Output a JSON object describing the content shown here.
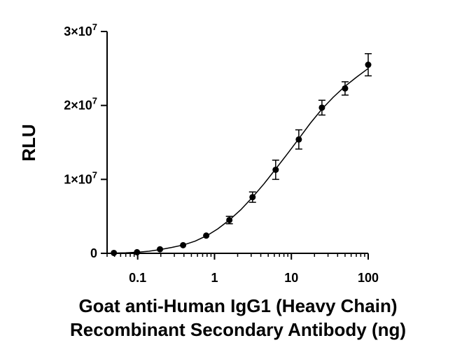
{
  "chart_data": {
    "type": "scatter",
    "title": "",
    "xlabel_lines": [
      "Goat anti-Human IgG1 (Heavy Chain)",
      "Recombinant Secondary Antibody (ng)"
    ],
    "ylabel": "RLU",
    "x_scale": "log",
    "xlim": [
      0.04,
      100
    ],
    "ylim": [
      0,
      30000000
    ],
    "x_ticks": [
      {
        "value": 0.1,
        "label": "0.1"
      },
      {
        "value": 1,
        "label": "1"
      },
      {
        "value": 10,
        "label": "10"
      },
      {
        "value": 100,
        "label": "100"
      }
    ],
    "y_ticks": [
      {
        "value": 0,
        "base": "0",
        "exp": ""
      },
      {
        "value": 10000000,
        "base": "1×10",
        "exp": "7"
      },
      {
        "value": 20000000,
        "base": "2×10",
        "exp": "7"
      },
      {
        "value": 30000000,
        "base": "3×10",
        "exp": "7"
      }
    ],
    "grid": false,
    "legend": "none",
    "points": [
      {
        "x": 0.049,
        "y": 50000,
        "err": 0
      },
      {
        "x": 0.098,
        "y": 150000,
        "err": 0
      },
      {
        "x": 0.195,
        "y": 550000,
        "err": 0
      },
      {
        "x": 0.39,
        "y": 1100000,
        "err": 0
      },
      {
        "x": 0.78,
        "y": 2400000,
        "err": 0
      },
      {
        "x": 1.56,
        "y": 4500000,
        "err": 500000
      },
      {
        "x": 3.125,
        "y": 7600000,
        "err": 700000
      },
      {
        "x": 6.25,
        "y": 11300000,
        "err": 1300000
      },
      {
        "x": 12.5,
        "y": 15400000,
        "err": 1300000
      },
      {
        "x": 25,
        "y": 19700000,
        "err": 1000000
      },
      {
        "x": 50,
        "y": 22300000,
        "err": 900000
      },
      {
        "x": 100,
        "y": 25500000,
        "err": 1500000
      }
    ],
    "fit_curve": [
      {
        "x": 0.049,
        "y": 40000
      },
      {
        "x": 0.07,
        "y": 80000
      },
      {
        "x": 0.1,
        "y": 150000
      },
      {
        "x": 0.14,
        "y": 280000
      },
      {
        "x": 0.2,
        "y": 520000
      },
      {
        "x": 0.28,
        "y": 800000
      },
      {
        "x": 0.4,
        "y": 1150000
      },
      {
        "x": 0.56,
        "y": 1650000
      },
      {
        "x": 0.8,
        "y": 2400000
      },
      {
        "x": 1.1,
        "y": 3300000
      },
      {
        "x": 1.56,
        "y": 4500000
      },
      {
        "x": 2.2,
        "y": 5900000
      },
      {
        "x": 3.125,
        "y": 7600000
      },
      {
        "x": 4.4,
        "y": 9400000
      },
      {
        "x": 6.25,
        "y": 11400000
      },
      {
        "x": 8.8,
        "y": 13400000
      },
      {
        "x": 12.5,
        "y": 15500000
      },
      {
        "x": 17.7,
        "y": 17600000
      },
      {
        "x": 25,
        "y": 19500000
      },
      {
        "x": 35,
        "y": 21100000
      },
      {
        "x": 50,
        "y": 22600000
      },
      {
        "x": 70,
        "y": 23800000
      },
      {
        "x": 100,
        "y": 25000000
      }
    ]
  }
}
